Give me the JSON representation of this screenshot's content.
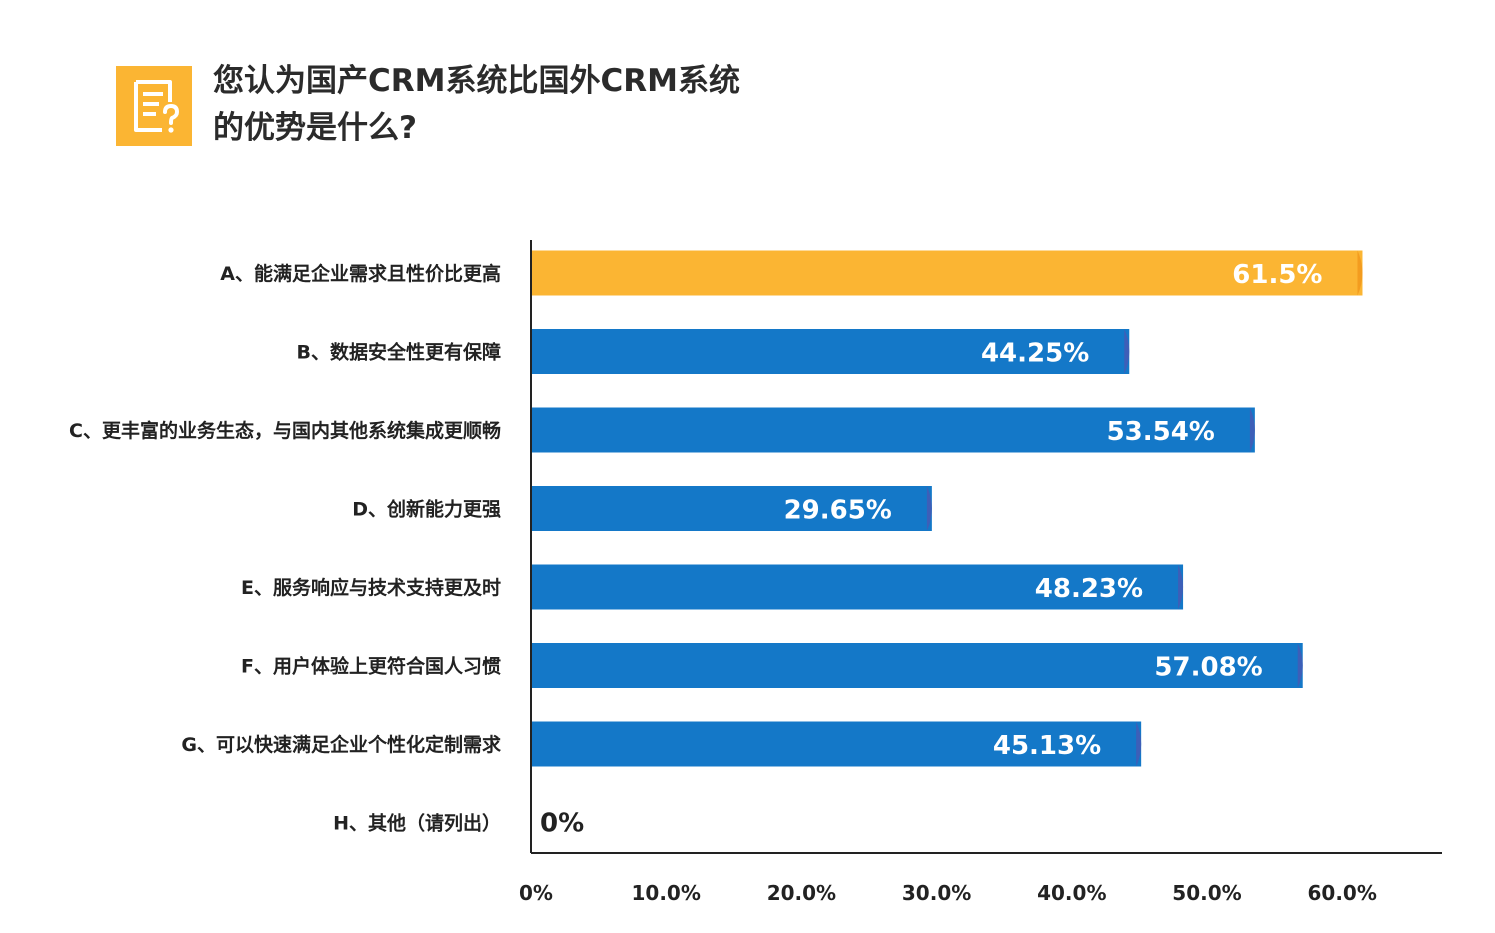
{
  "title": {
    "line1": "您认为国产CRM系统比国外CRM系统",
    "line2": "的优势是什么?"
  },
  "icon": "question-document-icon",
  "colors": {
    "accent": "#FBB533",
    "accent_edge": "#F39C1F",
    "bar": "#1478C8",
    "bar_edge": "#3D5FB8",
    "axis": "#222222",
    "icon_bg": "#FBB533"
  },
  "chart_data": {
    "type": "bar",
    "orientation": "horizontal",
    "categories": [
      "A、能满足企业需求且性价比更高",
      "B、数据安全性更有保障",
      "C、更丰富的业务生态，与国内其他系统集成更顺畅",
      "D、创新能力更强",
      "E、服务响应与技术支持更及时",
      "F、用户体验上更符合国人习惯",
      "G、可以快速满足企业个性化定制需求",
      "H、其他（请列出）"
    ],
    "values": [
      61.5,
      44.25,
      53.54,
      29.65,
      48.23,
      57.08,
      45.13,
      0
    ],
    "value_labels": [
      "61.5%",
      "44.25%",
      "53.54%",
      "29.65%",
      "48.23%",
      "57.08%",
      "45.13%",
      "0%"
    ],
    "highlight_index": 0,
    "xlim": [
      0,
      67
    ],
    "x_ticks": [
      0,
      10,
      20,
      30,
      40,
      50,
      60
    ],
    "x_tick_labels": [
      "0%",
      "10.0%",
      "20.0%",
      "30.0%",
      "40.0%",
      "50.0%",
      "60.0%"
    ],
    "grid": false,
    "legend": "none"
  }
}
